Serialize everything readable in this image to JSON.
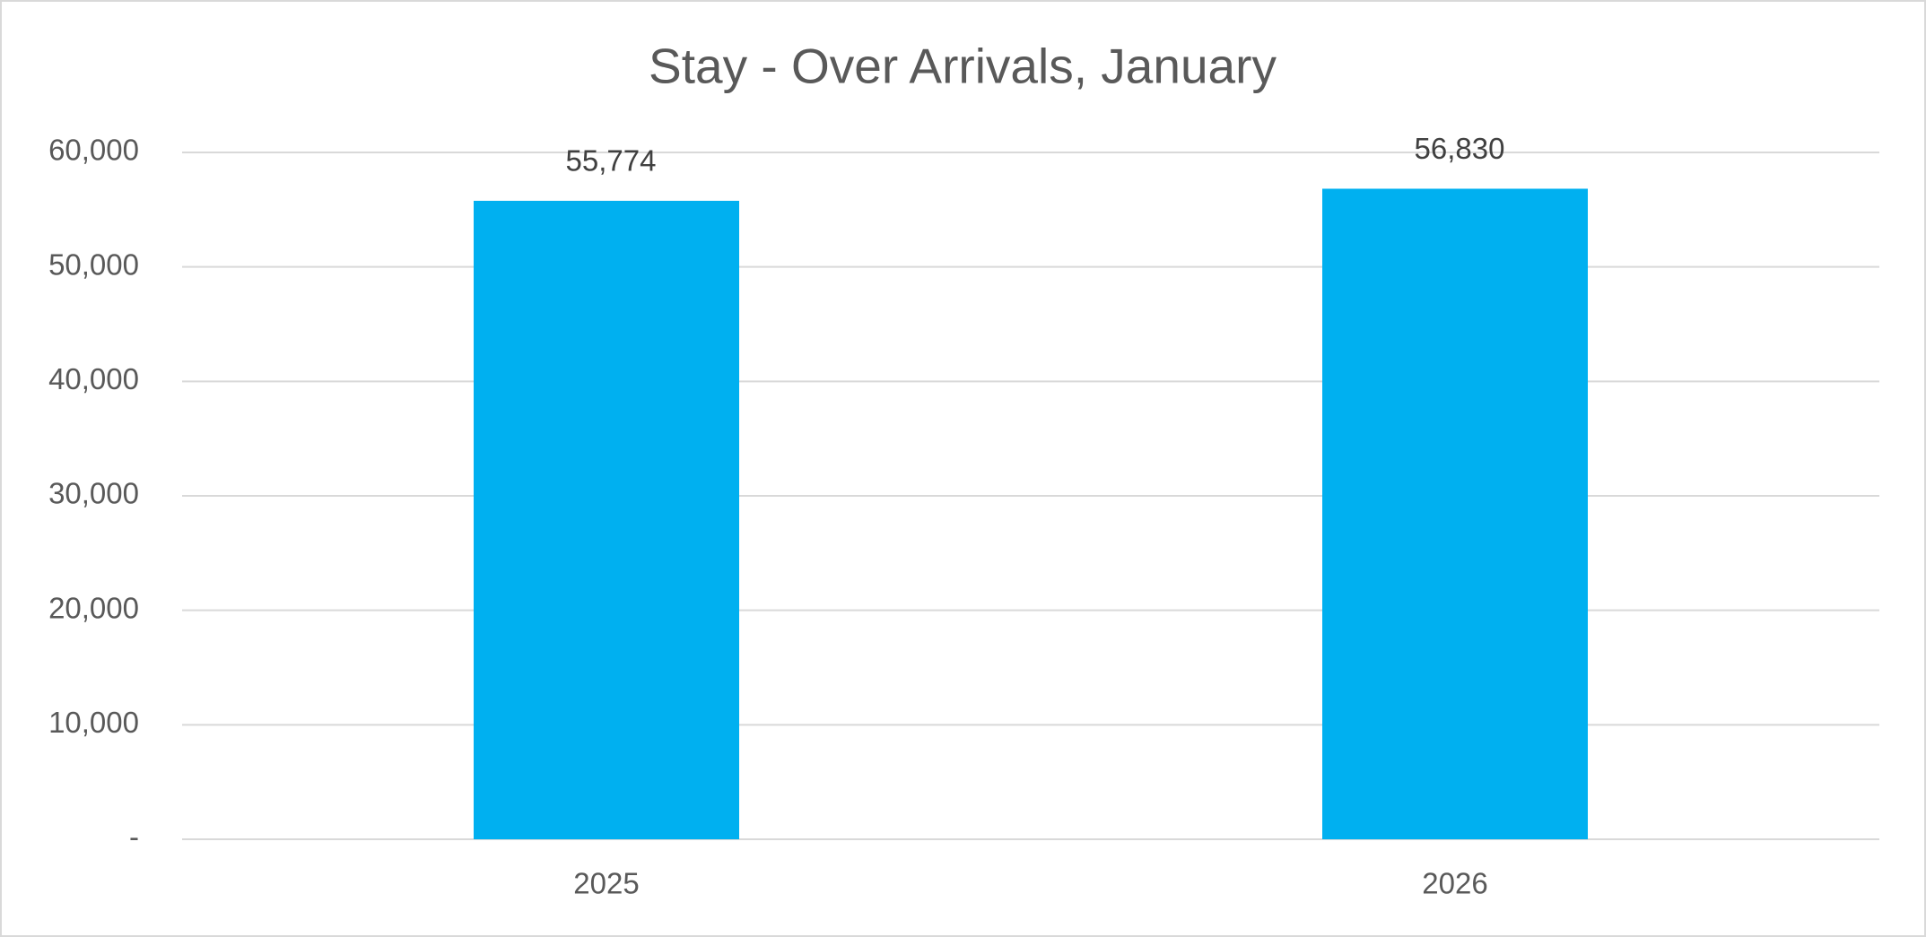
{
  "chart_data": {
    "type": "bar",
    "title": "Stay - Over Arrivals, January",
    "categories": [
      "2025",
      "2026"
    ],
    "values": [
      55774,
      56830
    ],
    "value_labels": [
      "55,774",
      "56,830"
    ],
    "color": "#00b0f0",
    "ylim": [
      0,
      60000
    ],
    "yticks": [
      {
        "value": 0,
        "label": "-"
      },
      {
        "value": 10000,
        "label": "10,000"
      },
      {
        "value": 20000,
        "label": "20,000"
      },
      {
        "value": 30000,
        "label": "30,000"
      },
      {
        "value": 40000,
        "label": "40,000"
      },
      {
        "value": 50000,
        "label": "50,000"
      },
      {
        "value": 60000,
        "label": "60,000"
      }
    ],
    "grid": true
  }
}
